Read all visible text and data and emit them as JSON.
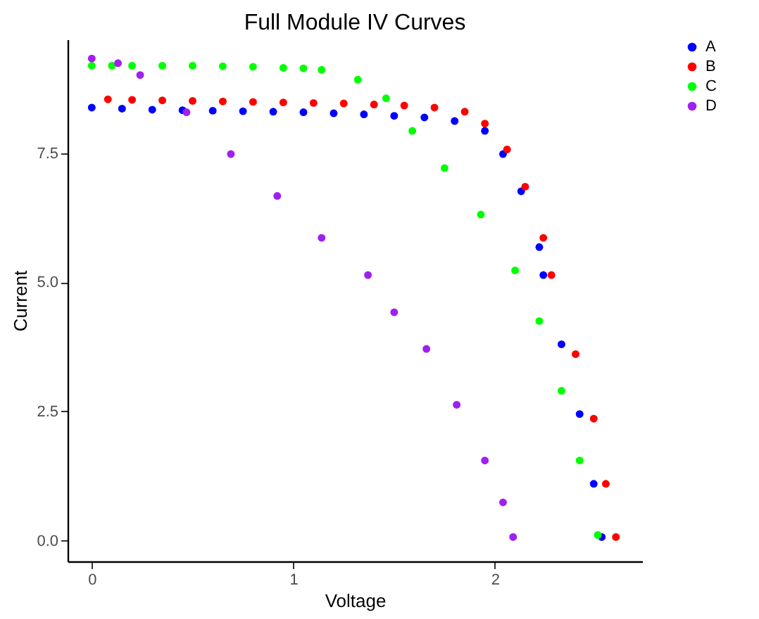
{
  "chart_data": {
    "type": "scatter",
    "title": "Full Module IV Curves",
    "xlabel": "Voltage",
    "ylabel": "Current",
    "xlim": [
      -0.12,
      2.73
    ],
    "ylim": [
      -0.4,
      9.7
    ],
    "xticks": [
      0,
      1,
      2
    ],
    "yticks": [
      {
        "value": 0,
        "label": "0.0"
      },
      2.5,
      {
        "value": 5,
        "label": "5.0"
      },
      7.5
    ],
    "grid": false,
    "legend": "right",
    "marker": "circle",
    "series": [
      {
        "name": "A",
        "color": "#0000ff",
        "x": [
          0,
          0.15,
          0.3,
          0.45,
          0.6,
          0.75,
          0.9,
          1.05,
          1.2,
          1.35,
          1.5,
          1.65,
          1.8,
          1.95,
          2.04,
          2.13,
          2.22,
          2.24,
          2.33,
          2.42,
          2.49,
          2.53
        ],
        "values": [
          8.38,
          8.36,
          8.34,
          8.33,
          8.32,
          8.31,
          8.3,
          8.29,
          8.27,
          8.25,
          8.22,
          8.19,
          8.12,
          7.93,
          7.48,
          6.76,
          5.68,
          5.14,
          3.8,
          2.45,
          1.1,
          0.07
        ]
      },
      {
        "name": "B",
        "color": "#ff0000",
        "x": [
          0.08,
          0.2,
          0.35,
          0.5,
          0.65,
          0.8,
          0.95,
          1.1,
          1.25,
          1.4,
          1.55,
          1.7,
          1.85,
          1.95,
          2.06,
          2.15,
          2.24,
          2.28,
          2.4,
          2.49,
          2.55,
          2.6
        ],
        "values": [
          8.54,
          8.53,
          8.52,
          8.51,
          8.5,
          8.49,
          8.48,
          8.47,
          8.46,
          8.44,
          8.42,
          8.38,
          8.3,
          8.07,
          7.57,
          6.85,
          5.86,
          5.14,
          3.61,
          2.36,
          1.1,
          0.07
        ]
      },
      {
        "name": "C",
        "color": "#00ff00",
        "x": [
          0,
          0.1,
          0.2,
          0.35,
          0.5,
          0.65,
          0.8,
          0.95,
          1.05,
          1.14,
          1.32,
          1.46,
          1.59,
          1.75,
          1.93,
          2.1,
          2.22,
          2.33,
          2.42,
          2.51
        ],
        "values": [
          9.19,
          9.19,
          9.19,
          9.19,
          9.19,
          9.18,
          9.17,
          9.15,
          9.14,
          9.11,
          8.92,
          8.56,
          7.93,
          7.21,
          6.31,
          5.23,
          4.25,
          2.9,
          1.55,
          0.11
        ]
      },
      {
        "name": "D",
        "color": "#a020f0",
        "x": [
          0,
          0.13,
          0.24,
          0.47,
          0.69,
          0.92,
          1.14,
          1.37,
          1.5,
          1.66,
          1.81,
          1.95,
          2.04,
          2.09
        ],
        "values": [
          9.33,
          9.24,
          9.01,
          8.29,
          7.48,
          6.67,
          5.86,
          5.14,
          4.42,
          3.71,
          2.63,
          1.55,
          0.74,
          0.07
        ]
      }
    ]
  }
}
